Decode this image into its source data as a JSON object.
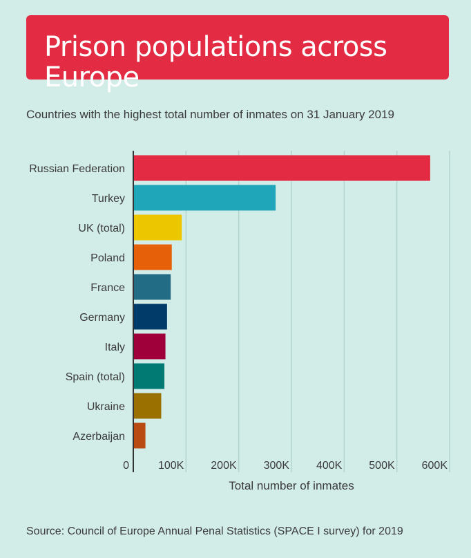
{
  "header": {
    "title": "Prison populations across Europe",
    "subtitle": "Countries with the highest total number of inmates on 31 January 2019"
  },
  "source": "Source: Council of Europe Annual Penal Statistics (SPACE I survey) for 2019",
  "chart_data": {
    "type": "bar",
    "orientation": "horizontal",
    "title": "Prison populations across Europe",
    "subtitle": "Countries with the highest total number of inmates on 31 January 2019",
    "xlabel": "Total number of inmates",
    "ylabel": "",
    "xlim": [
      0,
      600000
    ],
    "grid": true,
    "ticks": [
      {
        "value": 0,
        "label": "0"
      },
      {
        "value": 100000,
        "label": "100K"
      },
      {
        "value": 200000,
        "label": "200K"
      },
      {
        "value": 300000,
        "label": "300K"
      },
      {
        "value": 400000,
        "label": "400K"
      },
      {
        "value": 500000,
        "label": "500K"
      },
      {
        "value": 600000,
        "label": "600K"
      }
    ],
    "categories": [
      "Russian Federation",
      "Turkey",
      "UK (total)",
      "Poland",
      "France",
      "Germany",
      "Italy",
      "Spain (total)",
      "Ukraine",
      "Azerbaijan"
    ],
    "values": [
      563166,
      270000,
      92000,
      73000,
      71000,
      64000,
      61000,
      59000,
      53000,
      23000
    ],
    "colors": [
      "#e32c43",
      "#1fa6b8",
      "#ecc700",
      "#e6600a",
      "#226c85",
      "#003b69",
      "#a0003a",
      "#007a72",
      "#9a7000",
      "#b84a12"
    ]
  }
}
